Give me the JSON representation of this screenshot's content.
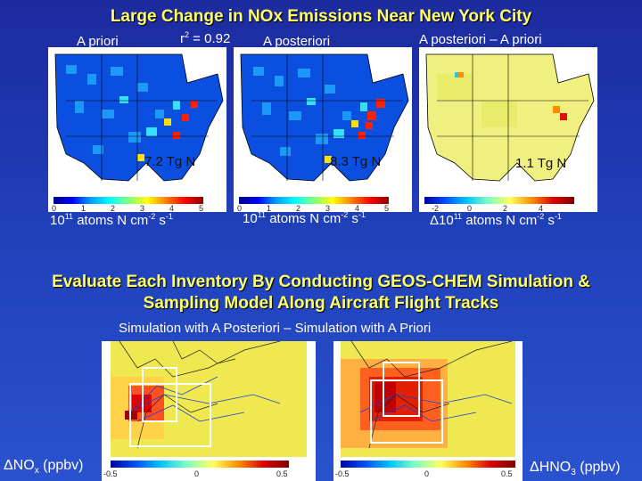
{
  "title": "Large Change in NOx Emissions Near New York City",
  "labels": {
    "a_priori": "A priori",
    "r2": "r",
    "r2_sup": "2",
    "r2_value": " = 0.92",
    "a_posteriori": "A posteriori",
    "difference": "A posteriori – A priori"
  },
  "panels": [
    {
      "total": "7.2 Tg N",
      "ticks": [
        "0",
        "1",
        "2",
        "3",
        "4",
        "5"
      ]
    },
    {
      "total": "8.3 Tg N",
      "ticks": [
        "0",
        "1",
        "2",
        "3",
        "4",
        "5"
      ]
    },
    {
      "total": "1.1 Tg N",
      "ticks": [
        "-2",
        "0",
        "2",
        "4"
      ]
    }
  ],
  "units": {
    "base": "10",
    "exp": "11",
    "mid": " atoms N cm",
    "cm_exp": "-2",
    "s": " s",
    "s_exp": "-1",
    "delta": "Δ"
  },
  "evaluate_line1": "Evaluate Each Inventory By Conducting GEOS-CHEM Simulation &",
  "evaluate_line2": "Sampling Model Along Aircraft Flight Tracks",
  "simulation_caption": "Simulation with A Posteriori – Simulation with A Priori",
  "bottom_ticks": {
    "left": [
      "-0.5",
      "0",
      "0.5"
    ],
    "right": [
      "-0.5",
      "0",
      "0.5"
    ]
  },
  "bottom_labels": {
    "nox_delta": "Δ",
    "nox": "NO",
    "nox_sub": "x",
    "nox_unit": " (ppbv)",
    "hno3_delta": "Δ",
    "hno3": "HNO",
    "hno3_sub": "3",
    "hno3_unit": " (ppbv)"
  },
  "colors": {
    "title": "#ffff66",
    "background": "#2040b8"
  }
}
